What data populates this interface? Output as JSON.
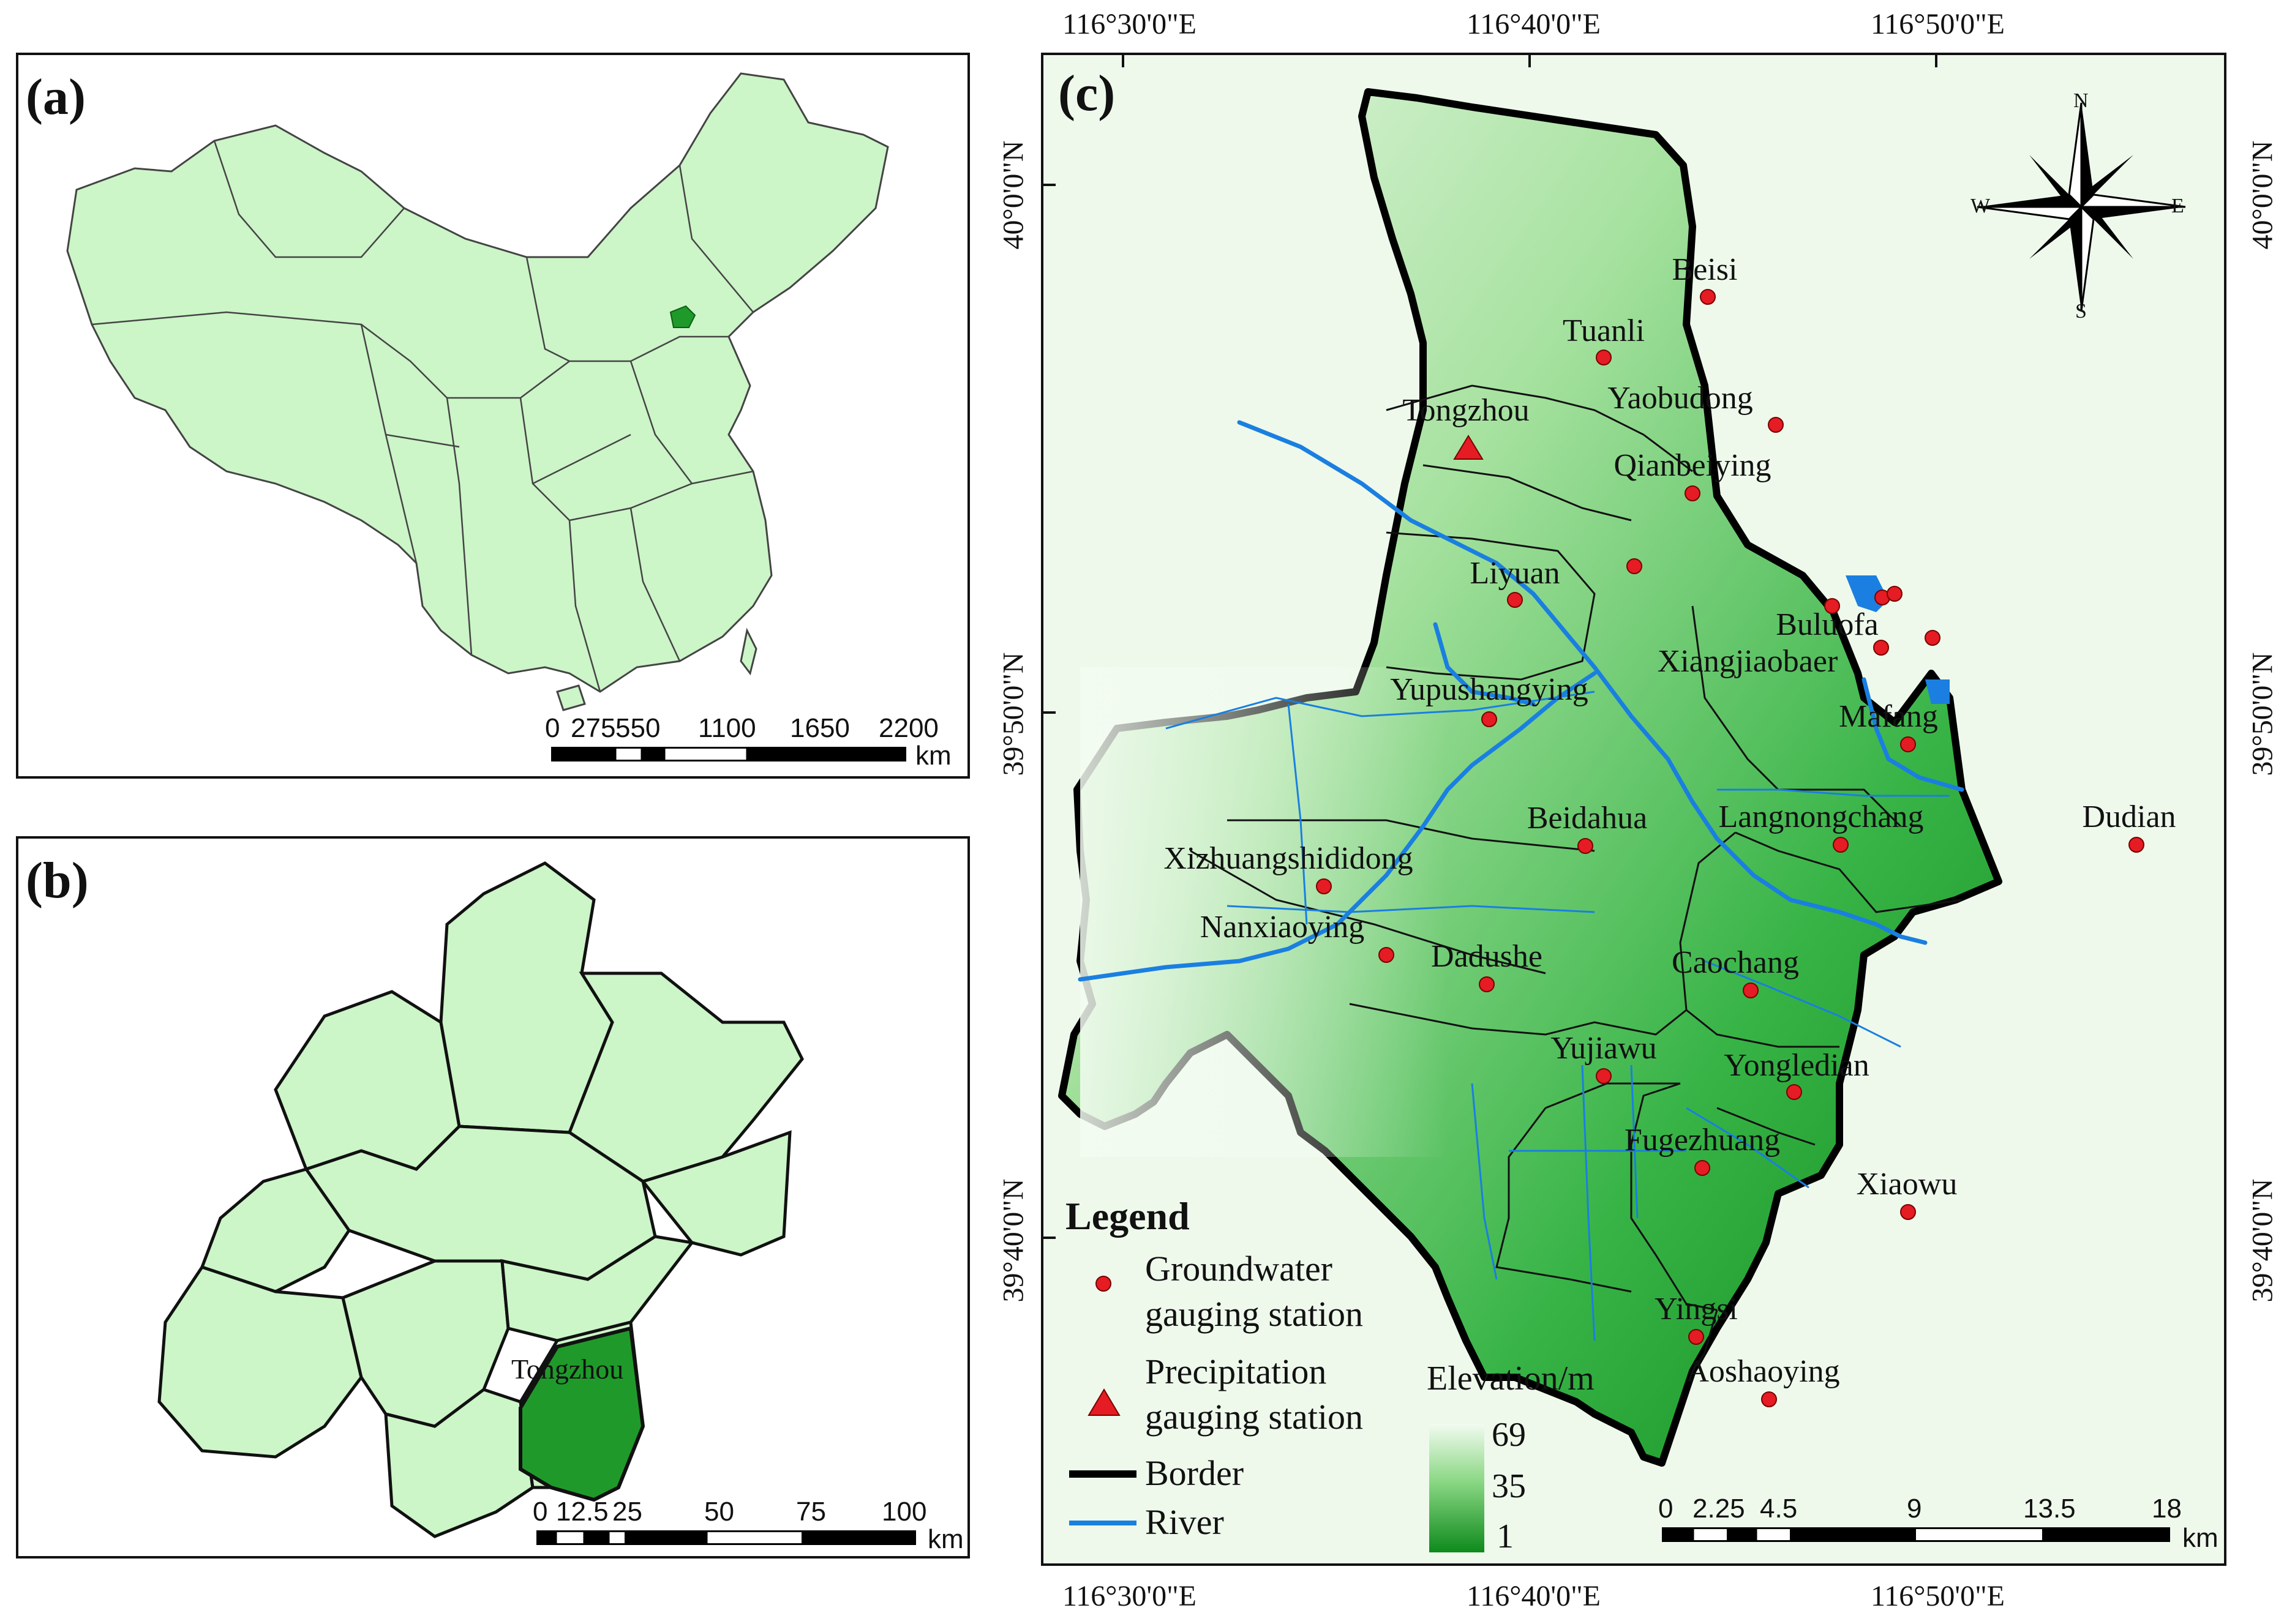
{
  "panel_a": {
    "label": "(a)",
    "scale_labels": [
      "0",
      "275",
      "550",
      "1100",
      "1650",
      "2200"
    ],
    "unit": "km"
  },
  "panel_b": {
    "label": "(b)",
    "district_label": "Tongzhou",
    "scale_labels": [
      "0",
      "12.5",
      "25",
      "50",
      "75",
      "100"
    ],
    "unit": "km"
  },
  "panel_c": {
    "label": "(c)",
    "lon_labels": [
      "116°30'0\"E",
      "116°40'0\"E",
      "116°50'0\"E"
    ],
    "lat_labels": [
      "40°0'0\"N",
      "39°50'0\"N",
      "39°40'0\"N"
    ],
    "compass": {
      "n": "N",
      "s": "S",
      "e": "E",
      "w": "W"
    },
    "stations": [
      {
        "name": "Beisi"
      },
      {
        "name": "Tuanli"
      },
      {
        "name": "Yaobudong"
      },
      {
        "name": "Tongzhou"
      },
      {
        "name": "Qianbeiying"
      },
      {
        "name": "Liyuan"
      },
      {
        "name": "Buluofa"
      },
      {
        "name": "Xiangjiaobaer"
      },
      {
        "name": "Yupushangying"
      },
      {
        "name": "Mafang"
      },
      {
        "name": "Beidahua"
      },
      {
        "name": "Langnongchang"
      },
      {
        "name": "Dudian"
      },
      {
        "name": "Xizhuangshididong"
      },
      {
        "name": "Nanxiaoying"
      },
      {
        "name": "Dadushe"
      },
      {
        "name": "Caochang"
      },
      {
        "name": "Yujiawu"
      },
      {
        "name": "Yongledian"
      },
      {
        "name": "Fugezhuang"
      },
      {
        "name": "Xiaowu"
      },
      {
        "name": "Yingsi"
      },
      {
        "name": "Aoshaoying"
      }
    ],
    "legend": {
      "title": "Legend",
      "groundwater_1": "Groundwater",
      "groundwater_2": "gauging station",
      "precip_1": "Precipitation",
      "precip_2": "gauging station",
      "border": "Border",
      "river": "River"
    },
    "elevation": {
      "title": "Elevation/m",
      "max": "69",
      "mid": "35",
      "min": "1",
      "color_high": "#f2fbf0",
      "color_low": "#0e8a1c"
    },
    "scale_labels": [
      "0",
      "2.25",
      "4.5",
      "9",
      "13.5",
      "18"
    ],
    "unit": "km"
  },
  "colors": {
    "province_fill": "#ccf5c8",
    "highlight": "#1f9a2a",
    "river": "#1a7fe0",
    "station": "#e51c23"
  }
}
